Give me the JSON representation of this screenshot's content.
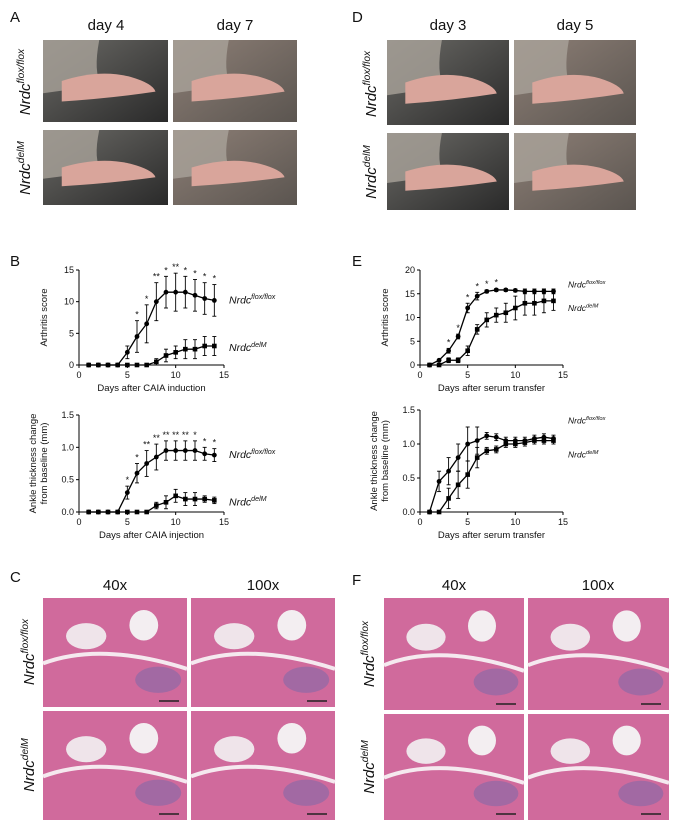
{
  "figure": {
    "panels": {
      "A": {
        "letter": "A",
        "columns": [
          "day 4",
          "day 7"
        ],
        "rows": [
          {
            "name": "Nrdc",
            "sup": "flox/flox"
          },
          {
            "name": "Nrdc",
            "sup": "delM"
          }
        ]
      },
      "D": {
        "letter": "D",
        "columns": [
          "day 3",
          "day 5"
        ],
        "rows": [
          {
            "name": "Nrdc",
            "sup": "flox/flox"
          },
          {
            "name": "Nrdc",
            "sup": "delM"
          }
        ]
      },
      "C": {
        "letter": "C",
        "columns": [
          "40x",
          "100x"
        ],
        "rows": [
          {
            "name": "Nrdc",
            "sup": "flox/flox"
          },
          {
            "name": "Nrdc",
            "sup": "delM"
          }
        ]
      },
      "F": {
        "letter": "F",
        "columns": [
          "40x",
          "100x"
        ],
        "rows": [
          {
            "name": "Nrdc",
            "sup": "flox/flox"
          },
          {
            "name": "Nrdc",
            "sup": "delM"
          }
        ]
      },
      "B": {
        "letter": "B"
      },
      "E": {
        "letter": "E"
      }
    }
  },
  "chart_data": [
    {
      "type": "line",
      "ylabel": [
        "Arthritis score"
      ],
      "xlabel": "Days after CAIA induction",
      "x": [
        1,
        2,
        3,
        4,
        5,
        6,
        7,
        8,
        9,
        10,
        11,
        12,
        13,
        14
      ],
      "xlim": [
        0,
        15
      ],
      "xticks": [
        0,
        5,
        10,
        15
      ],
      "ylim": [
        0,
        15
      ],
      "yticks": [
        0,
        5,
        10,
        15
      ],
      "series": [
        {
          "name": "Nrdc",
          "name_sup": "flox/flox",
          "color": "#000000",
          "marker": "circle",
          "values": [
            0,
            0,
            0,
            0,
            2,
            4.5,
            6.5,
            10,
            11.5,
            11.5,
            11.5,
            11,
            10.5,
            10.2
          ],
          "errors": [
            0,
            0,
            0,
            0,
            1,
            2.5,
            3,
            3,
            2.5,
            3,
            2.5,
            2.5,
            2.5,
            2.5
          ]
        },
        {
          "name": "Nrdc",
          "name_sup": "delM",
          "color": "#000000",
          "marker": "square",
          "values": [
            0,
            0,
            0,
            0,
            0,
            0,
            0,
            0.5,
            1.5,
            2,
            2.5,
            2.5,
            3,
            3
          ],
          "errors": [
            0,
            0,
            0,
            0,
            0,
            0,
            0,
            0.5,
            1,
            1,
            1.5,
            1.5,
            1.5,
            1.5
          ]
        }
      ],
      "annotations": [
        {
          "x": 6,
          "text": "*"
        },
        {
          "x": 7,
          "text": "*"
        },
        {
          "x": 8,
          "text": "**"
        },
        {
          "x": 9,
          "text": "*"
        },
        {
          "x": 10,
          "text": "**"
        },
        {
          "x": 11,
          "text": "*"
        },
        {
          "x": 12,
          "text": "*"
        },
        {
          "x": 13,
          "text": "*"
        },
        {
          "x": 14,
          "text": "*"
        }
      ]
    },
    {
      "type": "line",
      "ylabel": [
        "Ankle thickness change",
        "from baseline (mm)"
      ],
      "xlabel": "Days after CAIA injection",
      "x": [
        1,
        2,
        3,
        4,
        5,
        6,
        7,
        8,
        9,
        10,
        11,
        12,
        13,
        14
      ],
      "xlim": [
        0,
        15
      ],
      "xticks": [
        0,
        5,
        10,
        15
      ],
      "ylim": [
        0,
        1.5
      ],
      "yticks": [
        {
          "value": 0,
          "label": "0.0"
        },
        0.5,
        {
          "value": 1,
          "label": "1.0"
        },
        1.5
      ],
      "series": [
        {
          "name": "Nrdc",
          "name_sup": "flox/flox",
          "color": "#000000",
          "marker": "circle",
          "values": [
            0,
            0,
            0,
            0,
            0.3,
            0.6,
            0.75,
            0.85,
            0.95,
            0.95,
            0.95,
            0.95,
            0.9,
            0.88
          ],
          "errors": [
            0,
            0,
            0,
            0,
            0.1,
            0.15,
            0.2,
            0.2,
            0.15,
            0.15,
            0.15,
            0.15,
            0.1,
            0.1
          ]
        },
        {
          "name": "Nrdc",
          "name_sup": "delM",
          "color": "#000000",
          "marker": "square",
          "values": [
            0,
            0,
            0,
            0,
            0,
            0,
            0,
            0.1,
            0.15,
            0.25,
            0.2,
            0.2,
            0.2,
            0.18
          ],
          "errors": [
            0,
            0,
            0,
            0,
            0,
            0,
            0,
            0.05,
            0.1,
            0.1,
            0.1,
            0.1,
            0.05,
            0.05
          ]
        }
      ],
      "annotations": [
        {
          "x": 5,
          "text": "*"
        },
        {
          "x": 6,
          "text": "*"
        },
        {
          "x": 7,
          "text": "**"
        },
        {
          "x": 8,
          "text": "**"
        },
        {
          "x": 9,
          "text": "**"
        },
        {
          "x": 10,
          "text": "**"
        },
        {
          "x": 11,
          "text": "**"
        },
        {
          "x": 12,
          "text": "*"
        },
        {
          "x": 13,
          "text": "*"
        },
        {
          "x": 14,
          "text": "*"
        }
      ]
    },
    {
      "type": "line",
      "ylabel": [
        "Arthritis score"
      ],
      "xlabel": "Days after serum transfer",
      "x": [
        1,
        2,
        3,
        4,
        5,
        6,
        7,
        8,
        9,
        10,
        11,
        12,
        13,
        14
      ],
      "xlim": [
        0,
        15
      ],
      "xticks": [
        0,
        5,
        10,
        15
      ],
      "ylim": [
        0,
        20
      ],
      "yticks": [
        0,
        5,
        10,
        15,
        20
      ],
      "series": [
        {
          "name": "Nrdc",
          "name_sup": "flox/flox",
          "color": "#000000",
          "marker": "circle",
          "values": [
            0,
            1,
            3,
            6,
            12,
            14.5,
            15.5,
            15.8,
            15.8,
            15.7,
            15.5,
            15.5,
            15.5,
            15.5
          ],
          "errors": [
            0,
            0,
            0.5,
            0.5,
            1,
            0.8,
            0.3,
            0.3,
            0.3,
            0.3,
            0.5,
            0.5,
            0.5,
            0.5
          ]
        },
        {
          "name": "Nrdc",
          "name_sup": "delM",
          "color": "#000000",
          "marker": "square",
          "values": [
            0,
            0,
            1,
            1,
            3,
            7.5,
            9.5,
            10.5,
            11,
            12,
            13,
            13,
            13.5,
            13.5
          ],
          "errors": [
            0,
            0,
            0.5,
            0.5,
            1,
            1,
            1.5,
            1.5,
            2,
            2.5,
            2.5,
            2.5,
            2.5,
            2
          ]
        }
      ],
      "annotations": [
        {
          "x": 3,
          "text": "*"
        },
        {
          "x": 4,
          "text": "*"
        },
        {
          "x": 5,
          "text": "*"
        },
        {
          "x": 6,
          "text": "*"
        },
        {
          "x": 7,
          "text": "*"
        },
        {
          "x": 8,
          "text": "*"
        }
      ]
    },
    {
      "type": "line",
      "ylabel": [
        "Ankle thickness change",
        "from baseline (mm)"
      ],
      "xlabel": "Days after serum transfer",
      "x": [
        1,
        2,
        3,
        4,
        5,
        6,
        7,
        8,
        9,
        10,
        11,
        12,
        13,
        14
      ],
      "xlim": [
        0,
        15
      ],
      "xticks": [
        0,
        5,
        10,
        15
      ],
      "ylim": [
        0,
        1.5
      ],
      "yticks": [
        {
          "value": 0,
          "label": "0.0"
        },
        0.5,
        {
          "value": 1,
          "label": "1.0"
        },
        1.5
      ],
      "series": [
        {
          "name": "Nrdc",
          "name_sup": "flox/flox",
          "color": "#000000",
          "marker": "circle",
          "values": [
            0,
            0.45,
            0.6,
            0.8,
            1.0,
            1.05,
            1.12,
            1.1,
            1.05,
            1.05,
            1.05,
            1.08,
            1.1,
            1.08
          ],
          "errors": [
            0,
            0.15,
            0.2,
            0.2,
            0.25,
            0.2,
            0.05,
            0.05,
            0.05,
            0.05,
            0.05,
            0.05,
            0.05,
            0.05
          ]
        },
        {
          "name": "Nrdc",
          "name_sup": "delM",
          "color": "#000000",
          "marker": "square",
          "values": [
            0,
            0,
            0.2,
            0.4,
            0.55,
            0.8,
            0.9,
            0.92,
            1.0,
            1.0,
            1.02,
            1.05,
            1.05,
            1.05
          ],
          "errors": [
            0,
            0,
            0.15,
            0.2,
            0.2,
            0.15,
            0.05,
            0.05,
            0.05,
            0.05,
            0.05,
            0.05,
            0.05,
            0.05
          ]
        }
      ],
      "annotations": []
    }
  ]
}
